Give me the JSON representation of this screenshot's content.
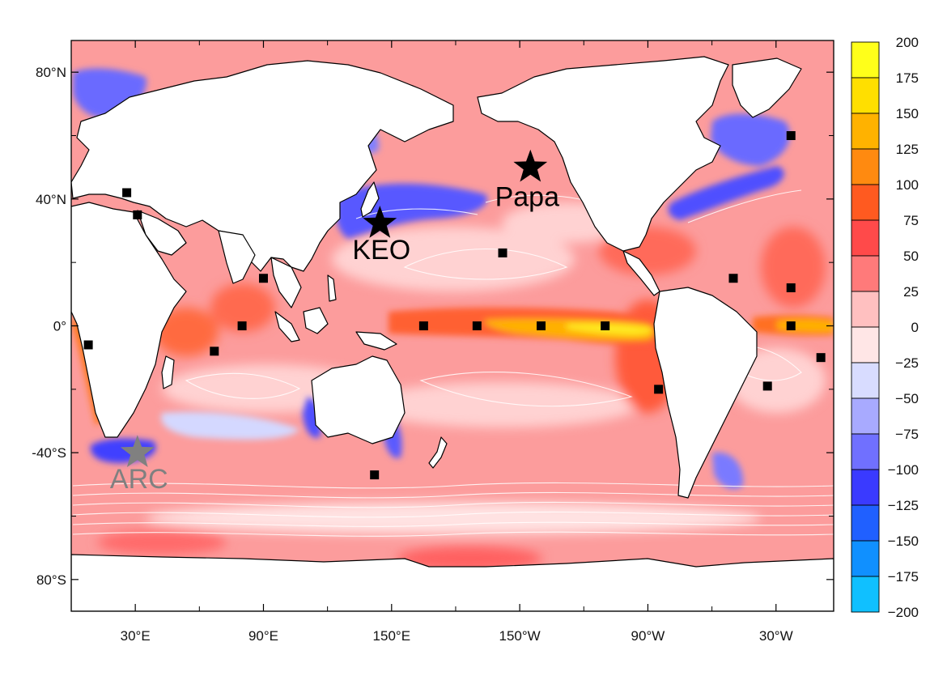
{
  "map": {
    "lat_ticks": [
      {
        "lat": 80,
        "label": "80°N"
      },
      {
        "lat": 40,
        "label": "40°N"
      },
      {
        "lat": 0,
        "label": "0°"
      },
      {
        "lat": -40,
        "label": "-40°S"
      },
      {
        "lat": -80,
        "label": "80°S"
      }
    ],
    "lon_ticks": [
      {
        "lon": 30,
        "label": "30°E"
      },
      {
        "lon": 90,
        "label": "90°E"
      },
      {
        "lon": 150,
        "label": "150°E"
      },
      {
        "lon": 210,
        "label": "150°W"
      },
      {
        "lon": 270,
        "label": "90°W"
      },
      {
        "lon": 330,
        "label": "30°W"
      }
    ],
    "colorbar": {
      "levels": [
        200,
        175,
        150,
        125,
        100,
        75,
        50,
        25,
        0,
        -25,
        -50,
        -75,
        -100,
        -125,
        -150,
        -175,
        -200
      ],
      "labels": [
        "200",
        "175",
        "150",
        "125",
        "100",
        "75",
        "50",
        "25",
        "0",
        "−25",
        "−50",
        "−75",
        "−100",
        "−125",
        "−150",
        "−175",
        "−200"
      ],
      "colors": [
        "#ffff1a",
        "#ffdf00",
        "#ffb200",
        "#ff8a10",
        "#ff5a20",
        "#ff4a4a",
        "#ff7a7a",
        "#ffc0c0",
        "#ffe6e6",
        "#d8dcff",
        "#a8aaff",
        "#7070ff",
        "#3a3aff",
        "#2060ff",
        "#1090ff",
        "#10c0ff",
        "#10ffff"
      ]
    },
    "colors": {
      "land": "#ffffff",
      "ocean_base": "#fc9c9c",
      "coastline": "#000000",
      "contour": "#ffffff",
      "mooring": "#000000",
      "star_black": "#000000",
      "star_gray": "#808080"
    },
    "sites": [
      {
        "name": "KEO",
        "lon": 144.5,
        "lat": 32.3,
        "color": "black"
      },
      {
        "name": "Papa",
        "lon": 215,
        "lat": 50,
        "color": "black"
      },
      {
        "name": "ARC",
        "lon": 31,
        "lat": -40,
        "color": "gray"
      }
    ],
    "moorings": [
      {
        "lon": 26,
        "lat": 42
      },
      {
        "lon": 31,
        "lat": 35
      },
      {
        "lon": 90,
        "lat": 15
      },
      {
        "lon": 80,
        "lat": 0
      },
      {
        "lon": 67,
        "lat": -8
      },
      {
        "lon": 8,
        "lat": -6
      },
      {
        "lon": 165,
        "lat": 0
      },
      {
        "lon": 190,
        "lat": 0
      },
      {
        "lon": 202,
        "lat": 23
      },
      {
        "lon": 220,
        "lat": 0
      },
      {
        "lon": 250,
        "lat": 0
      },
      {
        "lon": 275,
        "lat": -20
      },
      {
        "lon": 310,
        "lat": 15
      },
      {
        "lon": 337,
        "lat": 60
      },
      {
        "lon": 337,
        "lat": 12
      },
      {
        "lon": 337,
        "lat": 0
      },
      {
        "lon": 326,
        "lat": -19
      },
      {
        "lon": 351,
        "lat": -10
      },
      {
        "lon": 142,
        "lat": -47
      }
    ]
  }
}
